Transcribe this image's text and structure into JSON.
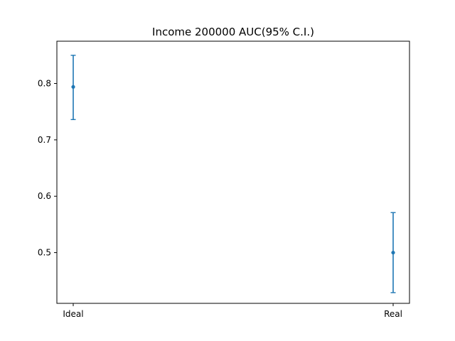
{
  "chart_data": {
    "type": "scatter",
    "title": "Income 200000 AUC(95% C.I.)",
    "xlabel": "",
    "ylabel": "",
    "categories": [
      "Ideal",
      "Real"
    ],
    "values": [
      0.794,
      0.5
    ],
    "ci_lower": [
      0.736,
      0.429
    ],
    "ci_upper": [
      0.85,
      0.571
    ],
    "ylim": [
      0.41,
      0.875
    ],
    "yticks": [
      0.5,
      0.6,
      0.7,
      0.8
    ],
    "ytick_labels": [
      "0.5",
      "0.6",
      "0.7",
      "0.8"
    ],
    "grid": false,
    "legend": "none",
    "color": "#1f77b4"
  }
}
